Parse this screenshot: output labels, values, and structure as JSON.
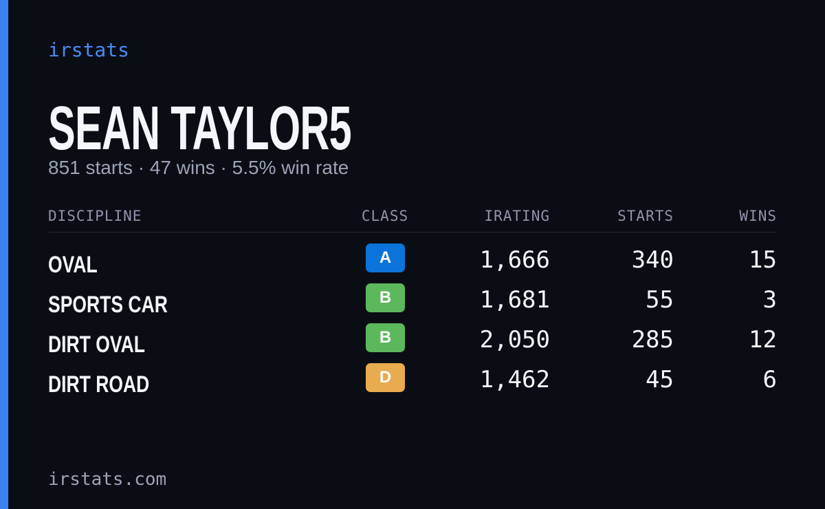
{
  "brand": "irstats",
  "player": {
    "name": "SEAN TAYLOR5",
    "summary": "851 starts · 47 wins · 5.5% win rate"
  },
  "table": {
    "headers": [
      "DISCIPLINE",
      "CLASS",
      "IRATING",
      "STARTS",
      "WINS"
    ],
    "rows": [
      {
        "discipline": "OVAL",
        "class": "A",
        "class_color": "#0a74da",
        "irating": "1,666",
        "starts": "340",
        "wins": "15"
      },
      {
        "discipline": "SPORTS CAR",
        "class": "B",
        "class_color": "#5cb85c",
        "irating": "1,681",
        "starts": "55",
        "wins": "3"
      },
      {
        "discipline": "DIRT OVAL",
        "class": "B",
        "class_color": "#5cb85c",
        "irating": "2,050",
        "starts": "285",
        "wins": "12"
      },
      {
        "discipline": "DIRT ROAD",
        "class": "D",
        "class_color": "#e8ab4f",
        "irating": "1,462",
        "starts": "45",
        "wins": "6"
      }
    ]
  },
  "footer": {
    "url": "irstats.com"
  }
}
